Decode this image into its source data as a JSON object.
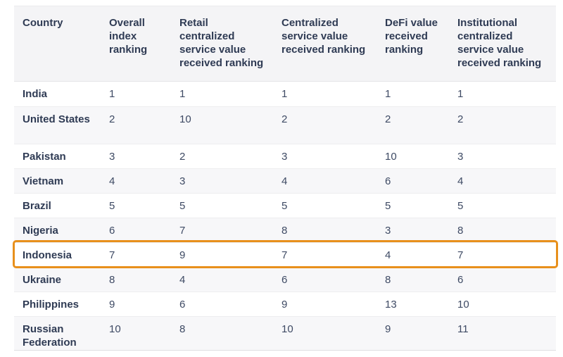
{
  "colors": {
    "page_bg": "#ffffff",
    "header_bg": "#f4f4f6",
    "alt_row_bg": "#f7f7f9",
    "header_text": "#2f3b54",
    "country_text": "#2f3b54",
    "value_text": "#3e4a64",
    "row_divider": "#ededef",
    "highlight_border": "#e8901c"
  },
  "chart_data": {
    "type": "table",
    "columns": [
      "Country",
      "Overall index ranking",
      "Retail centralized service value received ranking",
      "Centralized service value received ranking",
      "DeFi value received ranking",
      "Institutional centralized service value received ranking"
    ],
    "rows": [
      [
        "India",
        1,
        1,
        1,
        1,
        1
      ],
      [
        "United States",
        2,
        10,
        2,
        2,
        2
      ],
      [
        "Pakistan",
        3,
        2,
        3,
        10,
        3
      ],
      [
        "Vietnam",
        4,
        3,
        4,
        6,
        4
      ],
      [
        "Brazil",
        5,
        5,
        5,
        5,
        5
      ],
      [
        "Nigeria",
        6,
        7,
        8,
        3,
        8
      ],
      [
        "Indonesia",
        7,
        9,
        7,
        4,
        7
      ],
      [
        "Ukraine",
        8,
        4,
        6,
        8,
        6
      ],
      [
        "Philippines",
        9,
        6,
        9,
        13,
        10
      ],
      [
        "Russian Federation",
        10,
        8,
        10,
        9,
        11
      ]
    ],
    "highlighted_row": "Indonesia",
    "legend_position": "none",
    "grid": "row-dividers"
  }
}
